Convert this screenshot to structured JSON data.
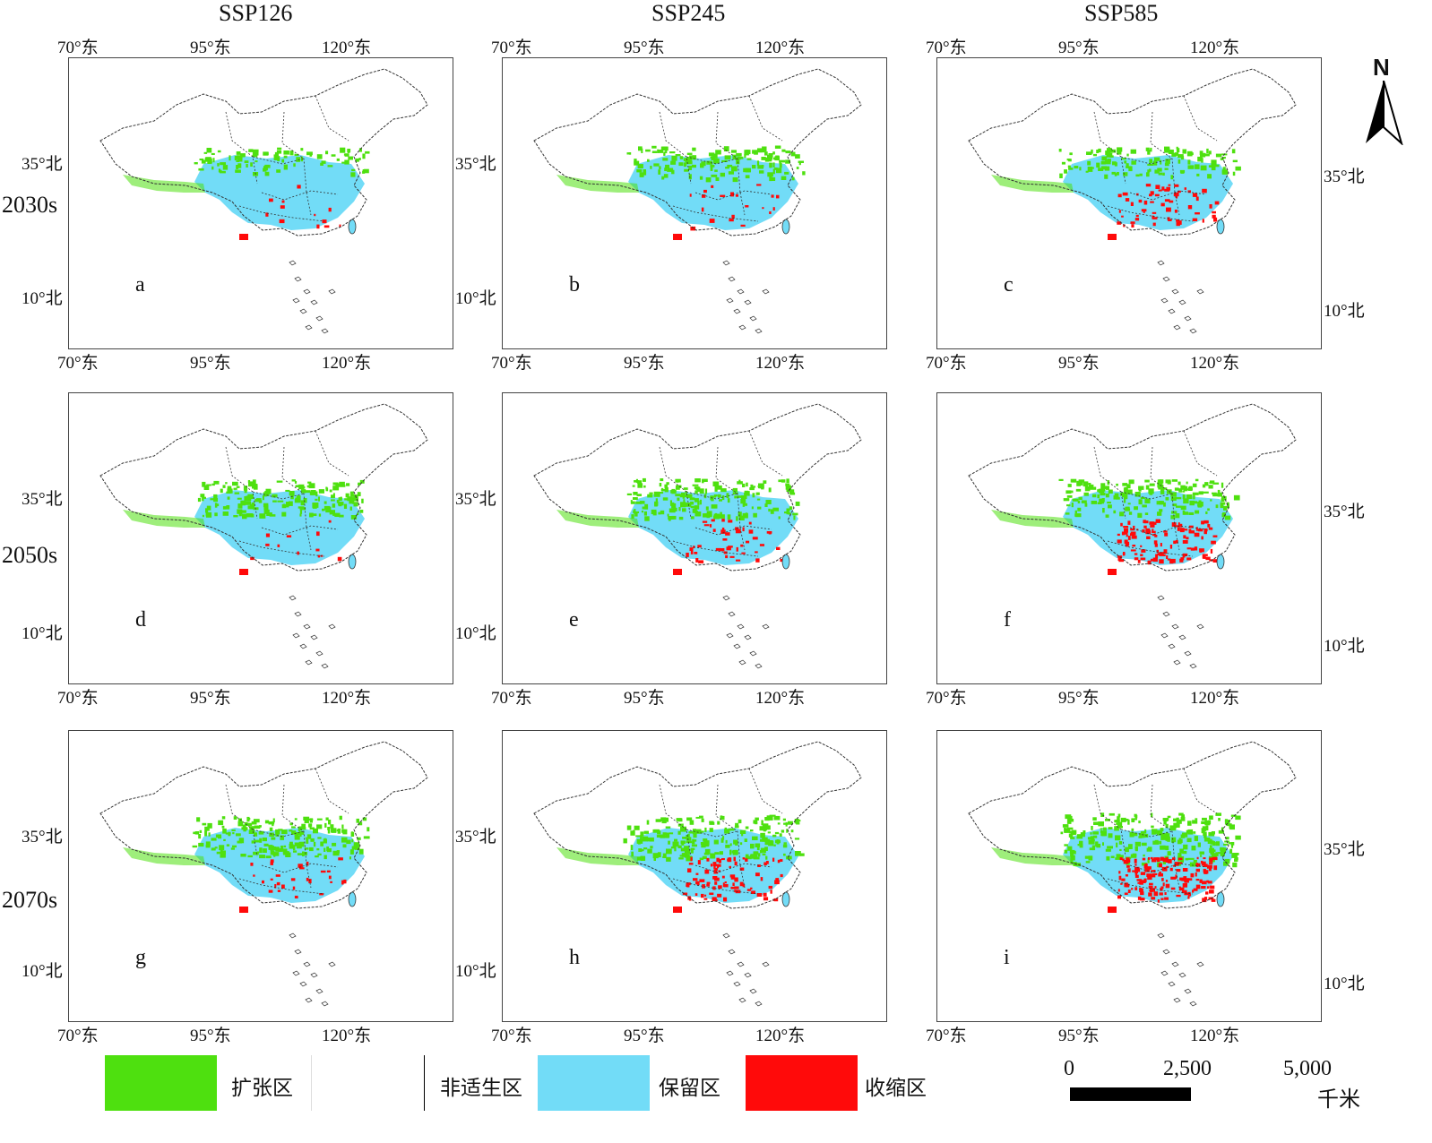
{
  "columns": [
    "SSP126",
    "SSP245",
    "SSP585"
  ],
  "rows": [
    "2030s",
    "2050s",
    "2070s"
  ],
  "ticks": {
    "lon": [
      "70°东",
      "95°东",
      "120°东"
    ],
    "lat_35": "35°北",
    "lat_10": "10°北"
  },
  "panels": [
    {
      "letter": "a",
      "shrink": 0.05,
      "expand": 0.25
    },
    {
      "letter": "b",
      "shrink": 0.1,
      "expand": 0.45
    },
    {
      "letter": "c",
      "shrink": 0.35,
      "expand": 0.35
    },
    {
      "letter": "d",
      "shrink": 0.05,
      "expand": 0.55
    },
    {
      "letter": "e",
      "shrink": 0.25,
      "expand": 0.65
    },
    {
      "letter": "f",
      "shrink": 0.7,
      "expand": 0.6
    },
    {
      "letter": "g",
      "shrink": 0.15,
      "expand": 0.7
    },
    {
      "letter": "h",
      "shrink": 0.55,
      "expand": 0.75
    },
    {
      "letter": "i",
      "shrink": 0.95,
      "expand": 0.95
    }
  ],
  "legend": {
    "items": [
      {
        "label": "扩张区",
        "color": "#4ee00f"
      },
      {
        "label": "非适生区",
        "color": "#ffffff"
      },
      {
        "label": "保留区",
        "color": "#72dcf7"
      },
      {
        "label": "收缩区",
        "color": "#ff0a0a"
      }
    ]
  },
  "colors": {
    "expansion": "#4ee00f",
    "retention": "#72dcf7",
    "contraction": "#ff0a0a",
    "border": "#333333"
  },
  "scale_bar": {
    "labels": [
      "0",
      "2,500",
      "5,000"
    ],
    "unit": "千米"
  },
  "north_arrow": {
    "label": "N",
    "icon": "north-arrow-icon"
  }
}
